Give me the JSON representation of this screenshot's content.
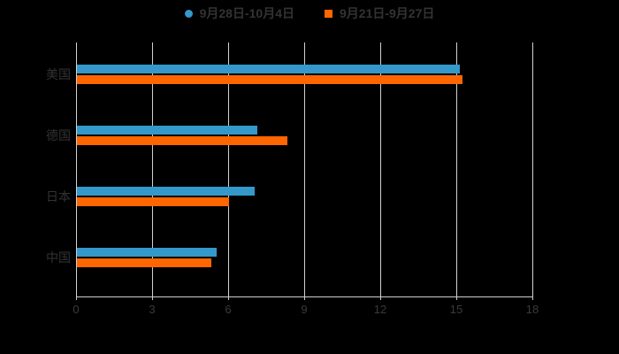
{
  "legend": {
    "items": [
      {
        "label": "9月28日-10月4日",
        "color": "#3498cb",
        "marker": "circle"
      },
      {
        "label": "9月21日-9月27日",
        "color": "#ff6600",
        "marker": "square"
      }
    ]
  },
  "chart_data": {
    "type": "bar",
    "orientation": "horizontal",
    "title": "",
    "xlabel": "",
    "ylabel": "",
    "categories": [
      "美国",
      "德国",
      "日本",
      "中国"
    ],
    "series": [
      {
        "name": "9月28日-10月4日",
        "color": "#3498cb",
        "values": [
          15.1,
          7.1,
          7.0,
          5.5
        ]
      },
      {
        "name": "9月21日-9月27日",
        "color": "#ff6600",
        "values": [
          15.2,
          8.3,
          6.0,
          5.3
        ]
      }
    ],
    "xlim": [
      0,
      18
    ],
    "xticks": [
      0,
      3,
      6,
      9,
      12,
      15,
      18
    ],
    "grid": true,
    "legend_position": "top"
  },
  "colors": {
    "background": "#000000",
    "text": "#333333",
    "tick_text": "#3a3a3a",
    "gridline": "#d2d2d2",
    "axis_line": "#cfcfcf"
  }
}
